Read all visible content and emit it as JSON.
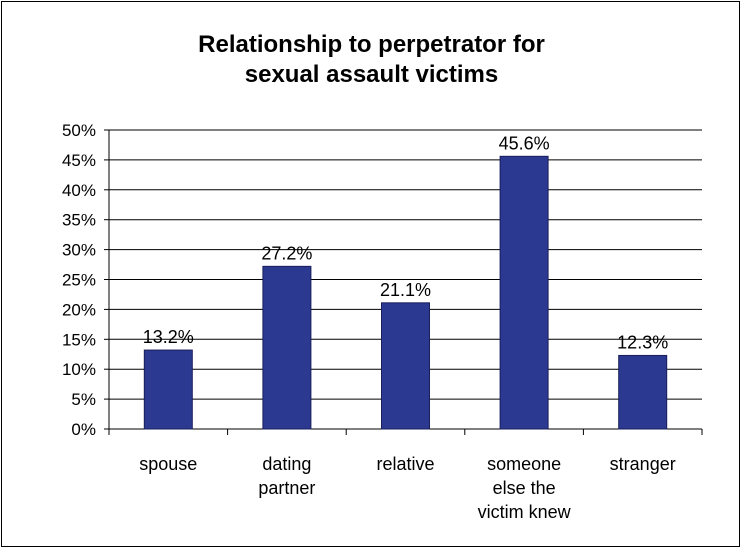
{
  "chart_data": {
    "type": "bar",
    "title_lines": [
      "Relationship to perpetrator for",
      "sexual assault victims"
    ],
    "categories": [
      [
        "spouse"
      ],
      [
        "dating",
        "partner"
      ],
      [
        "relative"
      ],
      [
        "someone",
        "else the",
        "victim knew"
      ],
      [
        "stranger"
      ]
    ],
    "values": [
      13.2,
      27.2,
      21.1,
      45.6,
      12.3
    ],
    "data_labels": [
      "13.2%",
      "27.2%",
      "21.1%",
      "45.6%",
      "12.3%"
    ],
    "ylim": [
      0,
      50
    ],
    "ytick_step": 5,
    "ytick_labels": [
      "0%",
      "5%",
      "10%",
      "15%",
      "20%",
      "25%",
      "30%",
      "35%",
      "40%",
      "45%",
      "50%"
    ],
    "grid": true,
    "legend": "none",
    "bar_color": "#2B3990"
  }
}
